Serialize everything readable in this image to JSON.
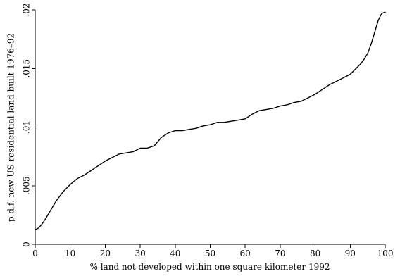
{
  "chart_data": {
    "type": "line",
    "xlabel": "% land not developed within one square kilometer 1992",
    "ylabel": "p.d.f. new US residential land built 1976–92",
    "xlim": [
      0,
      100
    ],
    "ylim": [
      0,
      0.02
    ],
    "x_ticks": [
      {
        "value": 0,
        "label": "0"
      },
      {
        "value": 10,
        "label": "10"
      },
      {
        "value": 20,
        "label": "20"
      },
      {
        "value": 30,
        "label": "30"
      },
      {
        "value": 40,
        "label": "40"
      },
      {
        "value": 50,
        "label": "50"
      },
      {
        "value": 60,
        "label": "60"
      },
      {
        "value": 70,
        "label": "70"
      },
      {
        "value": 80,
        "label": "80"
      },
      {
        "value": 90,
        "label": "90"
      },
      {
        "value": 100,
        "label": "100"
      }
    ],
    "y_ticks": [
      {
        "value": 0,
        "label": "0"
      },
      {
        "value": 0.005,
        "label": ".005"
      },
      {
        "value": 0.01,
        "label": ".01"
      },
      {
        "value": 0.015,
        "label": ".015"
      },
      {
        "value": 0.02,
        "label": ".02"
      }
    ],
    "grid": false,
    "series": [
      {
        "x": [
          0,
          1,
          2,
          3,
          4,
          5,
          6,
          7,
          8,
          9,
          10,
          12,
          14,
          16,
          18,
          20,
          22,
          24,
          26,
          28,
          30,
          32,
          34,
          36,
          38,
          40,
          42,
          44,
          46,
          48,
          50,
          52,
          54,
          56,
          58,
          60,
          62,
          64,
          66,
          68,
          70,
          72,
          74,
          76,
          78,
          80,
          82,
          84,
          86,
          88,
          90,
          91,
          92,
          93,
          94,
          95,
          96,
          97,
          98,
          99,
          100
        ],
        "y": [
          0.00125,
          0.0014,
          0.00175,
          0.0022,
          0.0027,
          0.0032,
          0.0037,
          0.0041,
          0.0045,
          0.0048,
          0.0051,
          0.0056,
          0.0059,
          0.0063,
          0.0067,
          0.0071,
          0.0074,
          0.0077,
          0.0078,
          0.0079,
          0.0082,
          0.0082,
          0.0084,
          0.0091,
          0.0095,
          0.0097,
          0.0097,
          0.0098,
          0.0099,
          0.0101,
          0.0102,
          0.0104,
          0.0104,
          0.0105,
          0.0106,
          0.0107,
          0.0111,
          0.0114,
          0.0115,
          0.0116,
          0.0118,
          0.0119,
          0.0121,
          0.0122,
          0.0125,
          0.0128,
          0.0132,
          0.0136,
          0.0139,
          0.0142,
          0.0145,
          0.0148,
          0.0151,
          0.0154,
          0.0158,
          0.0163,
          0.0171,
          0.0181,
          0.0191,
          0.0197,
          0.0198
        ]
      }
    ]
  }
}
